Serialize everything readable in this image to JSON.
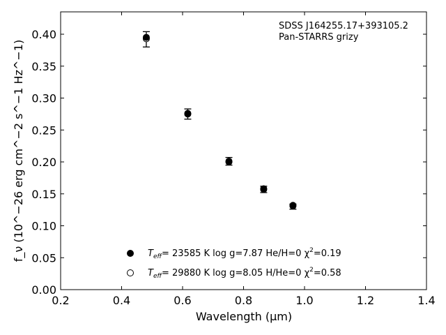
{
  "chart_data": {
    "type": "scatter",
    "title": "",
    "xlabel": "Wavelength (μm)",
    "ylabel": "f_ν (10^−26 erg cm^−2 s^−1 Hz^−1)",
    "xlim": [
      0.2,
      1.4
    ],
    "ylim": [
      0.0,
      0.435
    ],
    "x_ticks": [
      0.2,
      0.4,
      0.6,
      0.8,
      1.0,
      1.2,
      1.4
    ],
    "x_tick_labels": [
      "0.2",
      "0.4",
      "0.6",
      "0.8",
      "1.0",
      "1.2",
      "1.4"
    ],
    "y_ticks": [
      0.0,
      0.05,
      0.1,
      0.15,
      0.2,
      0.25,
      0.3,
      0.35,
      0.4
    ],
    "y_tick_labels": [
      "0.00",
      "0.05",
      "0.10",
      "0.15",
      "0.20",
      "0.25",
      "0.30",
      "0.35",
      "0.40"
    ],
    "grid": false,
    "annotations": [
      "SDSS J164255.17+393105.2",
      "Pan-STARRS grizy"
    ],
    "observed": {
      "x": [
        0.481,
        0.617,
        0.752,
        0.866,
        0.962
      ],
      "y": [
        0.392,
        0.275,
        0.201,
        0.157,
        0.13
      ],
      "yerr": [
        0.012,
        0.008,
        0.006,
        0.005,
        0.004
      ]
    },
    "series": [
      {
        "marker": "filled-circle",
        "label": "T_eff= 23585 K  log g=7.87  He/H=0  χ²=0.19",
        "teff": "T",
        "teff_sub": "eff",
        "desc": "= 23585 K  log g=7.87  He/H=0  χ",
        "sup": "2",
        "chi": "=0.19",
        "x": [
          0.481,
          0.617,
          0.752,
          0.866,
          0.962
        ],
        "y": [
          0.395,
          0.276,
          0.2,
          0.157,
          0.132
        ]
      },
      {
        "marker": "open-circle",
        "label": "T_eff= 29880 K  log g=8.05  H/He=0  χ²=0.58",
        "teff": "T",
        "teff_sub": "eff",
        "desc": "= 29880 K  log g=8.05  H/He=0  χ",
        "sup": "2",
        "chi": "=0.58",
        "x": [
          0.481,
          0.617,
          0.752,
          0.866,
          0.962
        ],
        "y": [
          0.393,
          0.275,
          0.201,
          0.158,
          0.131
        ]
      }
    ],
    "legend_position": "lower-center"
  }
}
